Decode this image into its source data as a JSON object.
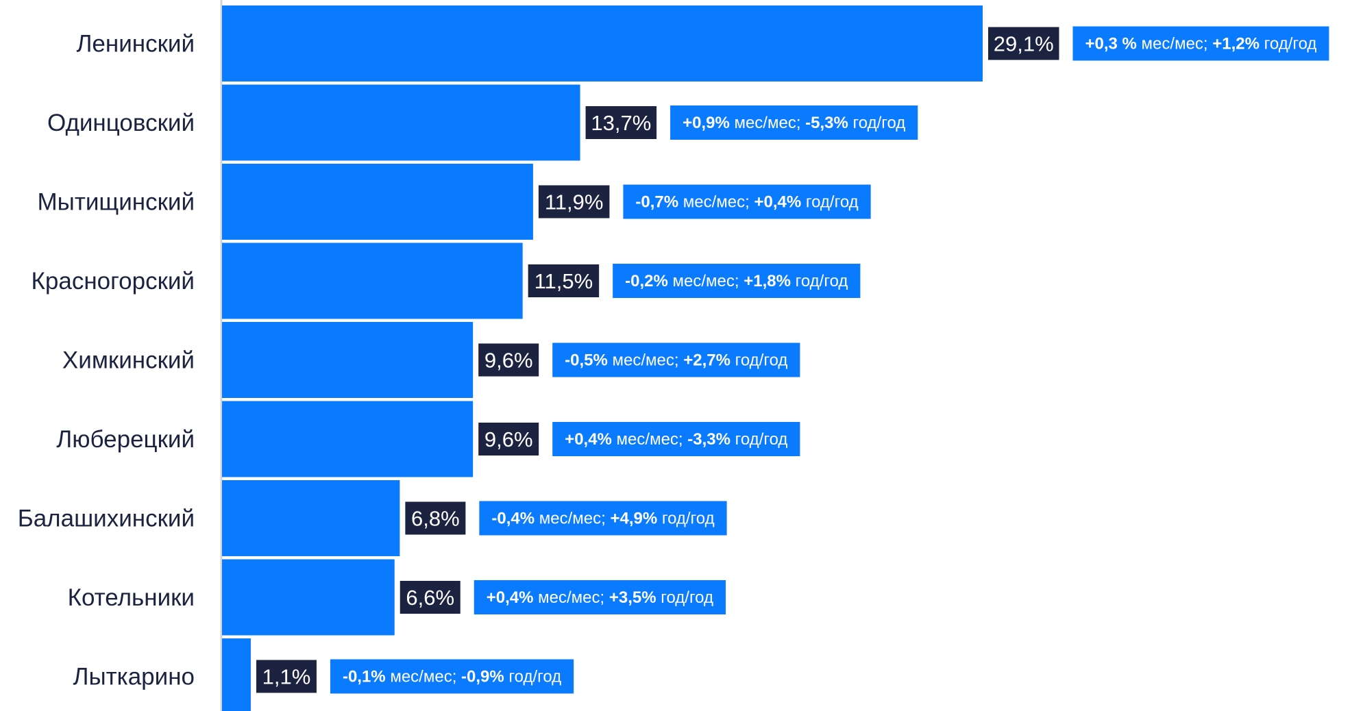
{
  "colors": {
    "bar": "#0a7bff",
    "value_box": "#1b2340",
    "value_text": "#ffffff",
    "change_box": "#0a7bff",
    "change_text": "#ffffff",
    "category_text": "#1b2340",
    "axis": "#d0d4da"
  },
  "chart_data": {
    "type": "bar",
    "orientation": "horizontal",
    "categories": [
      "Ленинский",
      "Одинцовский",
      "Мытищинский",
      "Красногорский",
      "Химкинский",
      "Люберецкий",
      "Балашихинский",
      "Котельники",
      "Лыткарино"
    ],
    "values": [
      29.1,
      13.7,
      11.9,
      11.5,
      9.6,
      9.6,
      6.8,
      6.6,
      1.1
    ],
    "value_labels": [
      "29,1%",
      "13,7%",
      "11,9%",
      "11,5%",
      "9,6%",
      "9,6%",
      "6,8%",
      "6,6%",
      "1,1%"
    ],
    "annotations": [
      {
        "mom": "+0,3 %",
        "mom_unit": "мес/мес;",
        "yoy": "+1,2%",
        "yoy_unit": "год/год"
      },
      {
        "mom": "+0,9%",
        "mom_unit": "мес/мес;",
        "yoy": "-5,3%",
        "yoy_unit": "год/год"
      },
      {
        "mom": "-0,7%",
        "mom_unit": "мес/мес;",
        "yoy": "+0,4%",
        "yoy_unit": "год/год"
      },
      {
        "mom": "-0,2%",
        "mom_unit": "мес/мес;",
        "yoy": "+1,8%",
        "yoy_unit": "год/год"
      },
      {
        "mom": "-0,5%",
        "mom_unit": "мес/мес;",
        "yoy": "+2,7%",
        "yoy_unit": "год/год"
      },
      {
        "mom": "+0,4%",
        "mom_unit": "мес/мес;",
        "yoy": "-3,3%",
        "yoy_unit": "год/год"
      },
      {
        "mom": "-0,4%",
        "mom_unit": "мес/мес;",
        "yoy": "+4,9%",
        "yoy_unit": "год/год"
      },
      {
        "mom": "+0,4%",
        "mom_unit": "мес/мес;",
        "yoy": "+3,5%",
        "yoy_unit": "год/год"
      },
      {
        "mom": "-0,1%",
        "mom_unit": "мес/мес;",
        "yoy": "-0,9%",
        "yoy_unit": "год/год"
      }
    ],
    "xlim": [
      0,
      29.1
    ],
    "grid": false,
    "legend": "none",
    "title": "",
    "xlabel": "",
    "ylabel": ""
  }
}
